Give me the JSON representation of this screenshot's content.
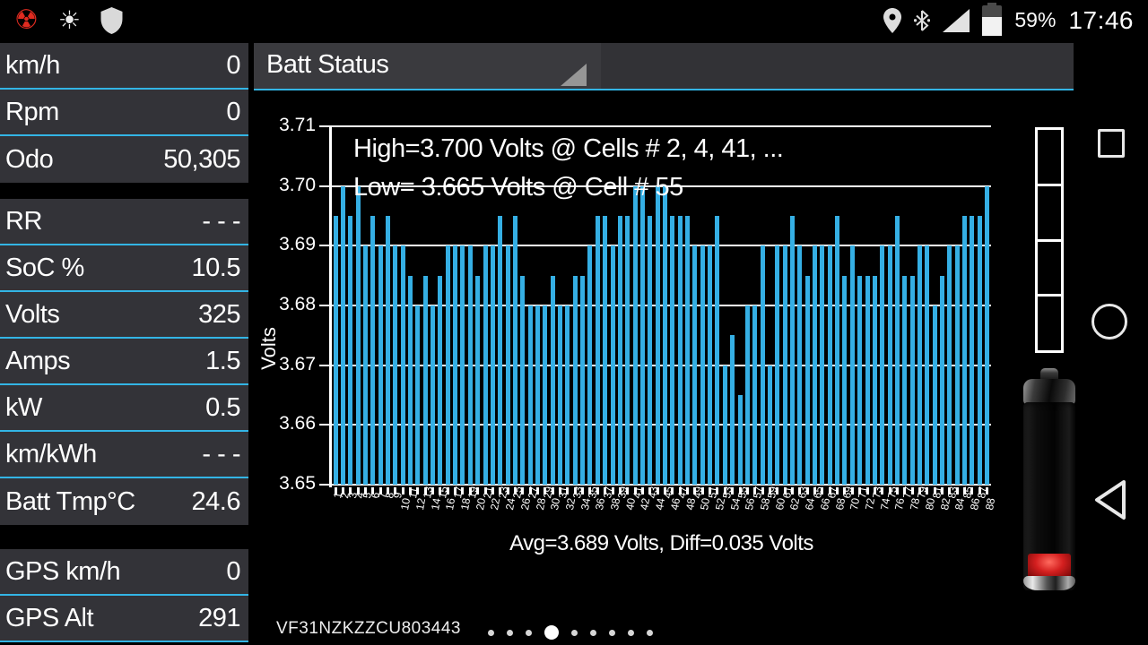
{
  "status_bar": {
    "time": "17:46",
    "battery_percent": "59%",
    "icons_left": [
      "radiation",
      "brightness",
      "shield"
    ],
    "icons_right": [
      "location",
      "bluetooth",
      "signal",
      "battery"
    ]
  },
  "header": {
    "spinner_label": "Batt Status"
  },
  "sidebar": {
    "groups": [
      {
        "rows": [
          {
            "label": "km/h",
            "value": "0"
          },
          {
            "label": "Rpm",
            "value": "0"
          },
          {
            "label": "Odo",
            "value": "50,305"
          }
        ]
      },
      {
        "rows": [
          {
            "label": "RR",
            "value": "- - -"
          },
          {
            "label": "SoC %",
            "value": "10.5"
          },
          {
            "label": "Volts",
            "value": "325"
          },
          {
            "label": "Amps",
            "value": "1.5"
          },
          {
            "label": "kW",
            "value": "0.5"
          },
          {
            "label": "km/kWh",
            "value": "- - -"
          },
          {
            "label": "Batt Tmp°C",
            "value": "24.6"
          }
        ]
      },
      {
        "rows": [
          {
            "label": "GPS km/h",
            "value": "0"
          },
          {
            "label": "GPS Alt",
            "value": "291"
          }
        ]
      }
    ]
  },
  "chart_data": {
    "type": "bar",
    "title": "",
    "xlabel": "",
    "ylabel": "Volts",
    "ylim": [
      3.65,
      3.71
    ],
    "yticks": [
      3.71,
      3.7,
      3.69,
      3.68,
      3.67,
      3.66,
      3.65
    ],
    "grid": true,
    "bar_color": "#35AFE4",
    "annotation_line1": "High=3.700 Volts @ Cells # 2, 4, 41,  ...",
    "annotation_line2": "Low= 3.665 Volts @ Cell # 55",
    "footer_label": "Avg=3.689 Volts, Diff=0.035 Volts",
    "categories": [
      1,
      2,
      3,
      4,
      5,
      6,
      7,
      8,
      9,
      10,
      11,
      12,
      13,
      14,
      15,
      16,
      17,
      18,
      19,
      20,
      21,
      22,
      23,
      24,
      25,
      26,
      27,
      28,
      29,
      30,
      31,
      32,
      33,
      34,
      35,
      36,
      37,
      38,
      39,
      40,
      41,
      42,
      43,
      44,
      45,
      46,
      47,
      48,
      49,
      50,
      51,
      52,
      53,
      54,
      55,
      56,
      57,
      58,
      59,
      60,
      61,
      62,
      63,
      64,
      65,
      66,
      67,
      68,
      69,
      70,
      71,
      72,
      73,
      74,
      75,
      76,
      77,
      78,
      79,
      80,
      81,
      82,
      83,
      84,
      85,
      86,
      87,
      88
    ],
    "values": [
      3.695,
      3.7,
      3.695,
      3.7,
      3.69,
      3.695,
      3.69,
      3.695,
      3.69,
      3.69,
      3.685,
      3.68,
      3.685,
      3.68,
      3.685,
      3.69,
      3.69,
      3.69,
      3.69,
      3.685,
      3.69,
      3.69,
      3.695,
      3.69,
      3.695,
      3.685,
      3.68,
      3.68,
      3.68,
      3.685,
      3.68,
      3.68,
      3.685,
      3.685,
      3.69,
      3.695,
      3.695,
      3.69,
      3.695,
      3.695,
      3.7,
      3.7,
      3.695,
      3.7,
      3.7,
      3.695,
      3.695,
      3.695,
      3.69,
      3.69,
      3.69,
      3.695,
      3.67,
      3.675,
      3.665,
      3.68,
      3.68,
      3.69,
      3.67,
      3.69,
      3.69,
      3.695,
      3.69,
      3.685,
      3.69,
      3.69,
      3.69,
      3.695,
      3.685,
      3.69,
      3.685,
      3.685,
      3.685,
      3.69,
      3.69,
      3.695,
      3.685,
      3.685,
      3.69,
      3.69,
      3.68,
      3.685,
      3.69,
      3.69,
      3.695,
      3.695,
      3.695,
      3.7
    ]
  },
  "right_panel": {
    "gauge_segments": 4,
    "battery_image": "battery-low-red"
  },
  "footer": {
    "vin": "VF31NZKZZCU803443",
    "page_dots": {
      "count": 9,
      "active_index": 3
    }
  },
  "colors": {
    "accent": "#33B5E5",
    "bar": "#35AFE4"
  }
}
